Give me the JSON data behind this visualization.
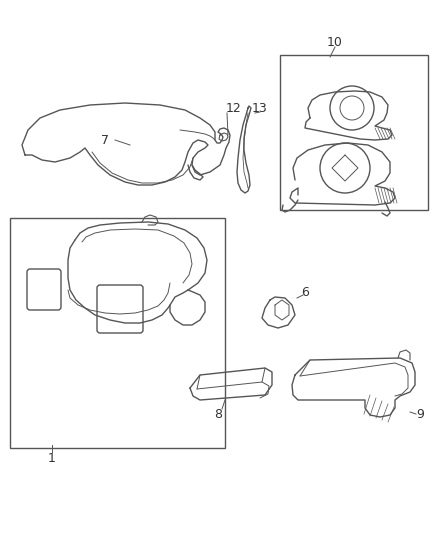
{
  "background_color": "#ffffff",
  "line_color": "#555555",
  "label_color": "#333333",
  "figsize": [
    4.38,
    5.33
  ],
  "dpi": 100,
  "lw": 1.0
}
